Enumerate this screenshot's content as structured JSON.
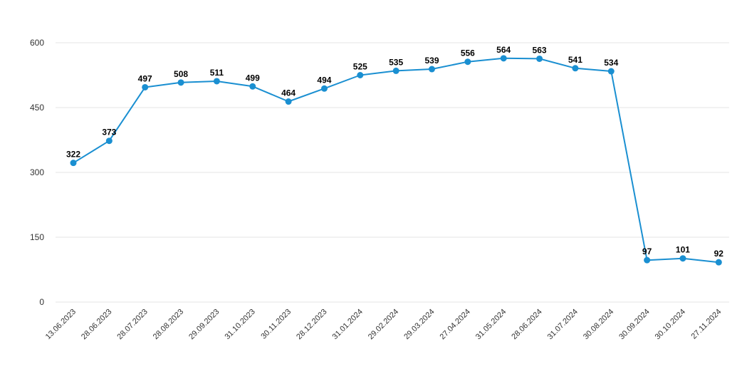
{
  "chart_data": {
    "type": "line",
    "title": "",
    "xlabel": "",
    "ylabel": "",
    "ylim": [
      0,
      600
    ],
    "yticks": [
      "0",
      "150",
      "300",
      "450",
      "600"
    ],
    "grid": true,
    "legend": "none",
    "categories": [
      "13.06.2023",
      "28.06.2023",
      "28.07.2023",
      "28.08.2023",
      "29.09.2023",
      "31.10.2023",
      "30.11.2023",
      "28.12.2023",
      "31.01.2024",
      "29.02.2024",
      "29.03.2024",
      "27.04.2024",
      "31.05.2024",
      "28.06.2024",
      "31.07.2024",
      "30.08.2024",
      "30.09.2024",
      "30.10.2024",
      "27.11.2024"
    ],
    "series": [
      {
        "color": "#1a8fd1",
        "values": [
          322,
          373,
          497,
          508,
          511,
          499,
          464,
          494,
          525,
          535,
          539,
          556,
          564,
          563,
          541,
          534,
          97,
          101,
          92
        ]
      }
    ]
  }
}
